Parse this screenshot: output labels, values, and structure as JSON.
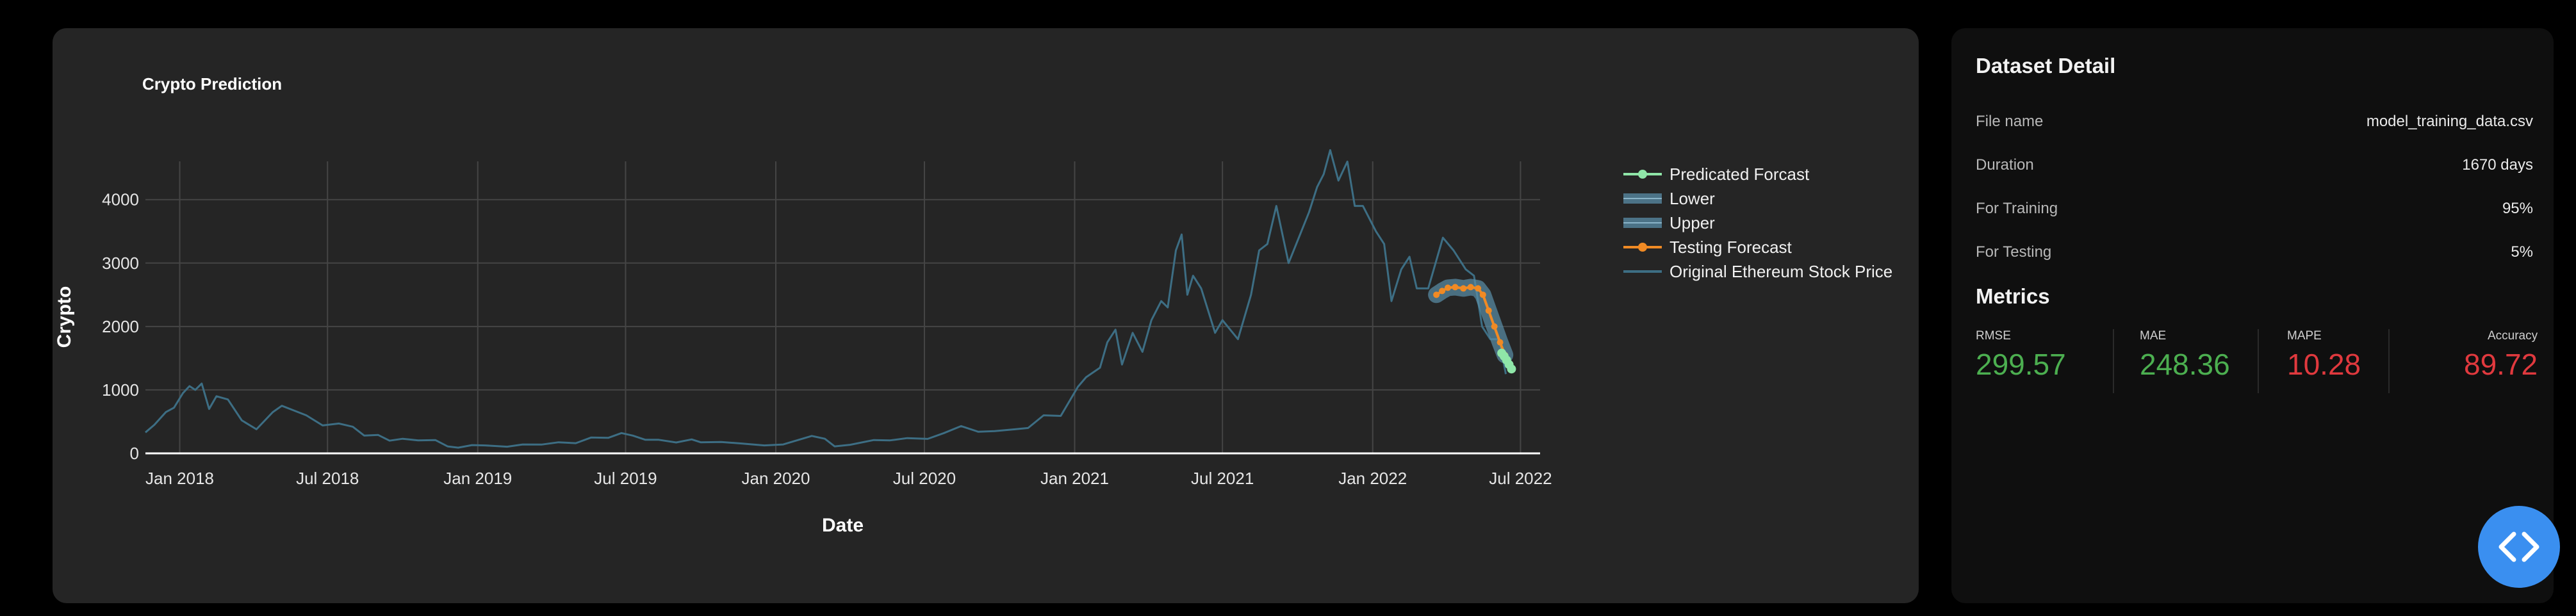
{
  "chart_card": {
    "chart_data": {
      "type": "line",
      "title": "Crypto Prediction",
      "xlabel": "Date",
      "ylabel": "Crypto",
      "x_range": [
        "2017-11-20",
        "2022-07-25"
      ],
      "ylim": [
        0,
        4300
      ],
      "y_ticks": [
        0,
        1000,
        2000,
        3000,
        4000
      ],
      "x_ticks": [
        {
          "date": "2018-01-01",
          "label": "Jan 2018"
        },
        {
          "date": "2018-07-01",
          "label": "Jul 2018"
        },
        {
          "date": "2019-01-01",
          "label": "Jan 2019"
        },
        {
          "date": "2019-07-01",
          "label": "Jul 2019"
        },
        {
          "date": "2020-01-01",
          "label": "Jan 2020"
        },
        {
          "date": "2020-07-01",
          "label": "Jul 2020"
        },
        {
          "date": "2021-01-01",
          "label": "Jan 2021"
        },
        {
          "date": "2021-07-01",
          "label": "Jul 2021"
        },
        {
          "date": "2022-01-01",
          "label": "Jan 2022"
        },
        {
          "date": "2022-07-01",
          "label": "Jul 2022"
        }
      ],
      "grid": true,
      "legend_position": "right",
      "legend": [
        {
          "label": "Predicated Forcast",
          "style": "line-marker",
          "color": "#8fe6a8"
        },
        {
          "label": "Lower",
          "style": "band",
          "color": "#5a8ea8"
        },
        {
          "label": "Upper",
          "style": "band",
          "color": "#5a8ea8"
        },
        {
          "label": "Testing Forecast",
          "style": "line-marker",
          "color": "#f08a24"
        },
        {
          "label": "Original Ethereum Stock Price",
          "style": "line",
          "color": "#3d6e84"
        }
      ],
      "series": [
        {
          "name": "Original Ethereum Stock Price",
          "color": "#3d6e84",
          "points": [
            [
              "2017-11-20",
              330
            ],
            [
              "2017-12-01",
              450
            ],
            [
              "2017-12-15",
              650
            ],
            [
              "2017-12-25",
              720
            ],
            [
              "2018-01-05",
              950
            ],
            [
              "2018-01-13",
              1060
            ],
            [
              "2018-01-20",
              1000
            ],
            [
              "2018-01-28",
              1100
            ],
            [
              "2018-02-06",
              700
            ],
            [
              "2018-02-15",
              900
            ],
            [
              "2018-03-01",
              850
            ],
            [
              "2018-03-18",
              520
            ],
            [
              "2018-04-05",
              380
            ],
            [
              "2018-04-25",
              650
            ],
            [
              "2018-05-06",
              750
            ],
            [
              "2018-05-20",
              680
            ],
            [
              "2018-06-05",
              600
            ],
            [
              "2018-06-25",
              440
            ],
            [
              "2018-07-15",
              470
            ],
            [
              "2018-08-01",
              420
            ],
            [
              "2018-08-15",
              280
            ],
            [
              "2018-09-01",
              290
            ],
            [
              "2018-09-15",
              200
            ],
            [
              "2018-10-01",
              230
            ],
            [
              "2018-10-20",
              205
            ],
            [
              "2018-11-10",
              210
            ],
            [
              "2018-11-25",
              110
            ],
            [
              "2018-12-08",
              90
            ],
            [
              "2018-12-25",
              130
            ],
            [
              "2019-01-10",
              125
            ],
            [
              "2019-02-06",
              105
            ],
            [
              "2019-02-25",
              140
            ],
            [
              "2019-03-20",
              138
            ],
            [
              "2019-04-10",
              175
            ],
            [
              "2019-05-01",
              160
            ],
            [
              "2019-05-20",
              250
            ],
            [
              "2019-06-10",
              245
            ],
            [
              "2019-06-26",
              320
            ],
            [
              "2019-07-10",
              280
            ],
            [
              "2019-07-25",
              215
            ],
            [
              "2019-08-10",
              215
            ],
            [
              "2019-09-01",
              172
            ],
            [
              "2019-09-20",
              220
            ],
            [
              "2019-10-01",
              175
            ],
            [
              "2019-10-26",
              180
            ],
            [
              "2019-11-20",
              155
            ],
            [
              "2019-12-18",
              125
            ],
            [
              "2020-01-10",
              140
            ],
            [
              "2020-02-14",
              275
            ],
            [
              "2020-03-01",
              230
            ],
            [
              "2020-03-13",
              110
            ],
            [
              "2020-04-01",
              135
            ],
            [
              "2020-04-30",
              210
            ],
            [
              "2020-05-20",
              205
            ],
            [
              "2020-06-10",
              240
            ],
            [
              "2020-07-05",
              228
            ],
            [
              "2020-07-25",
              320
            ],
            [
              "2020-08-15",
              430
            ],
            [
              "2020-09-05",
              340
            ],
            [
              "2020-09-25",
              350
            ],
            [
              "2020-10-20",
              380
            ],
            [
              "2020-11-05",
              400
            ],
            [
              "2020-11-24",
              600
            ],
            [
              "2020-12-15",
              590
            ],
            [
              "2021-01-05",
              1050
            ],
            [
              "2021-01-15",
              1200
            ],
            [
              "2021-02-01",
              1350
            ],
            [
              "2021-02-10",
              1750
            ],
            [
              "2021-02-20",
              1950
            ],
            [
              "2021-02-28",
              1400
            ],
            [
              "2021-03-13",
              1900
            ],
            [
              "2021-03-25",
              1600
            ],
            [
              "2021-04-05",
              2100
            ],
            [
              "2021-04-17",
              2400
            ],
            [
              "2021-04-25",
              2300
            ],
            [
              "2021-05-05",
              3200
            ],
            [
              "2021-05-12",
              3450
            ],
            [
              "2021-05-19",
              2500
            ],
            [
              "2021-05-26",
              2800
            ],
            [
              "2021-06-05",
              2600
            ],
            [
              "2021-06-22",
              1900
            ],
            [
              "2021-07-01",
              2100
            ],
            [
              "2021-07-20",
              1800
            ],
            [
              "2021-08-05",
              2500
            ],
            [
              "2021-08-15",
              3200
            ],
            [
              "2021-08-25",
              3300
            ],
            [
              "2021-09-05",
              3900
            ],
            [
              "2021-09-20",
              3000
            ],
            [
              "2021-10-01",
              3350
            ],
            [
              "2021-10-15",
              3800
            ],
            [
              "2021-10-25",
              4200
            ],
            [
              "2021-11-02",
              4400
            ],
            [
              "2021-11-10",
              4780
            ],
            [
              "2021-11-20",
              4300
            ],
            [
              "2021-12-01",
              4600
            ],
            [
              "2021-12-10",
              3900
            ],
            [
              "2021-12-20",
              3900
            ],
            [
              "2022-01-05",
              3500
            ],
            [
              "2022-01-15",
              3300
            ],
            [
              "2022-01-24",
              2400
            ],
            [
              "2022-02-05",
              2900
            ],
            [
              "2022-02-15",
              3100
            ],
            [
              "2022-02-24",
              2600
            ],
            [
              "2022-03-10",
              2600
            ],
            [
              "2022-03-28",
              3400
            ],
            [
              "2022-04-10",
              3200
            ],
            [
              "2022-04-25",
              2900
            ],
            [
              "2022-05-05",
              2800
            ],
            [
              "2022-05-15",
              2000
            ],
            [
              "2022-05-25",
              1800
            ],
            [
              "2022-06-05",
              1800
            ],
            [
              "2022-06-13",
              1250
            ]
          ]
        },
        {
          "name": "Testing Forecast",
          "color": "#f08a24",
          "points": [
            [
              "2022-03-20",
              2500
            ],
            [
              "2022-03-27",
              2560
            ],
            [
              "2022-04-03",
              2610
            ],
            [
              "2022-04-12",
              2620
            ],
            [
              "2022-04-22",
              2600
            ],
            [
              "2022-05-01",
              2620
            ],
            [
              "2022-05-10",
              2600
            ],
            [
              "2022-05-16",
              2500
            ],
            [
              "2022-05-23",
              2250
            ],
            [
              "2022-05-30",
              2000
            ],
            [
              "2022-06-06",
              1750
            ],
            [
              "2022-06-12",
              1550
            ]
          ]
        },
        {
          "name": "Predicated Forcast",
          "color": "#8fe6a8",
          "points": [
            [
              "2022-06-08",
              1580
            ],
            [
              "2022-06-11",
              1530
            ],
            [
              "2022-06-14",
              1470
            ],
            [
              "2022-06-17",
              1400
            ],
            [
              "2022-06-20",
              1330
            ]
          ]
        }
      ]
    }
  },
  "dataset_detail": {
    "title": "Dataset Detail",
    "rows": [
      {
        "label": "File name",
        "value": "model_training_data.csv"
      },
      {
        "label": "Duration",
        "value": "1670 days"
      },
      {
        "label": "For Training",
        "value": "95%"
      },
      {
        "label": "For Testing",
        "value": "5%"
      }
    ]
  },
  "metrics": {
    "title": "Metrics",
    "items": [
      {
        "label": "RMSE",
        "value": "299.57",
        "color": "#4caf50"
      },
      {
        "label": "MAE",
        "value": "248.36",
        "color": "#4caf50"
      },
      {
        "label": "MAPE",
        "value": "10.28",
        "color": "#e0393e"
      },
      {
        "label": "Accuracy",
        "value": "89.72",
        "color": "#e0393e"
      }
    ]
  },
  "fab": {
    "icon": "code-icon",
    "color": "#3a8ff0"
  }
}
